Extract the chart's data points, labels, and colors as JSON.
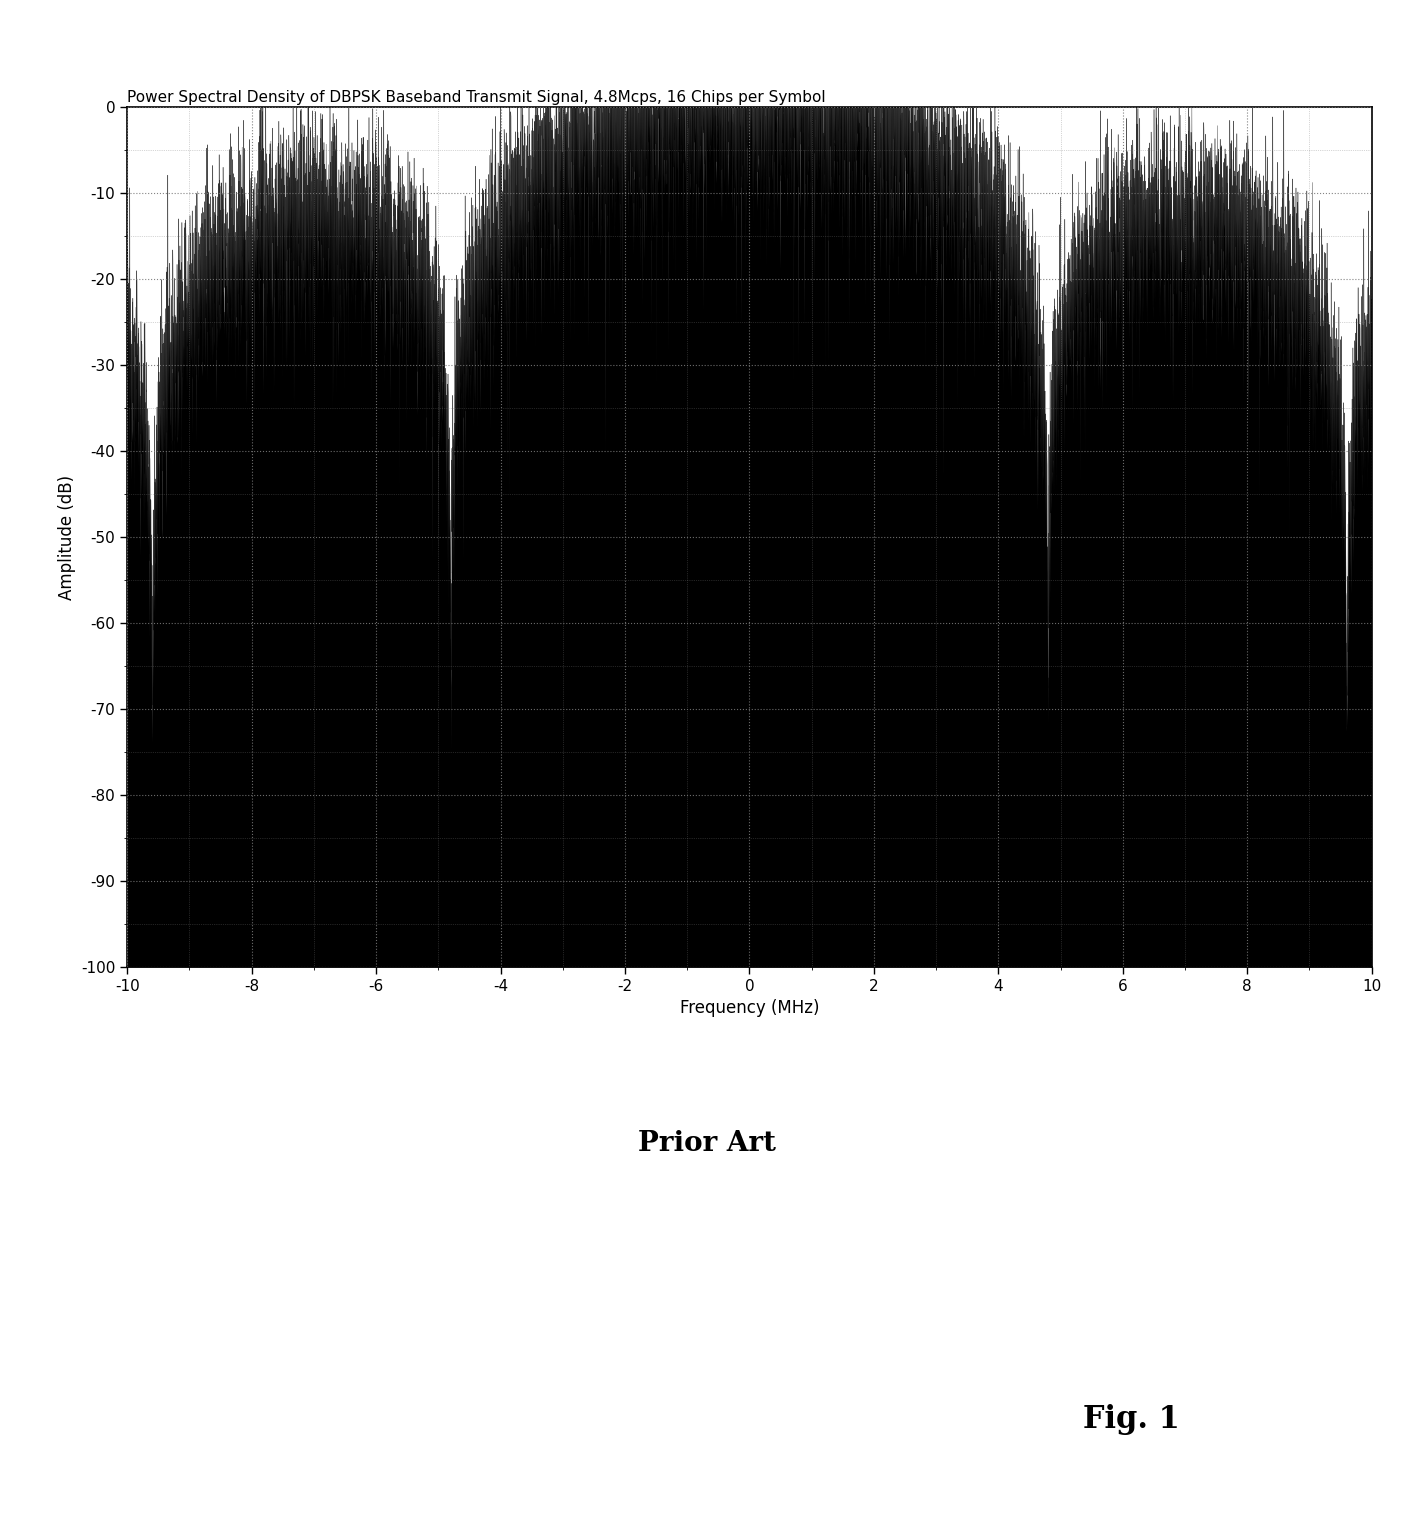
{
  "title": "Power Spectral Density of DBPSK Baseband Transmit Signal, 4.8Mcps, 16 Chips per Symbol",
  "xlabel": "Frequency (MHz)",
  "ylabel": "Amplitude (dB)",
  "xlim": [
    -10,
    10
  ],
  "ylim": [
    -100,
    0
  ],
  "xticks": [
    -10,
    -8,
    -6,
    -4,
    -2,
    0,
    2,
    4,
    6,
    8,
    10
  ],
  "yticks": [
    0,
    -10,
    -20,
    -30,
    -40,
    -50,
    -60,
    -70,
    -80,
    -90,
    -100
  ],
  "chip_rate": 4.8,
  "chips_per_symbol": 16,
  "noise_floor": -70,
  "peak_db": 0,
  "prior_art_text": "Prior Art",
  "fig_label": "Fig. 1",
  "background_color": "#ffffff",
  "plot_bg_color": "#ffffff",
  "line_color": "#000000",
  "grid_color": "#777777",
  "title_fontsize": 11,
  "label_fontsize": 12,
  "tick_fontsize": 11,
  "prior_art_fontsize": 20,
  "fig_label_fontsize": 22
}
